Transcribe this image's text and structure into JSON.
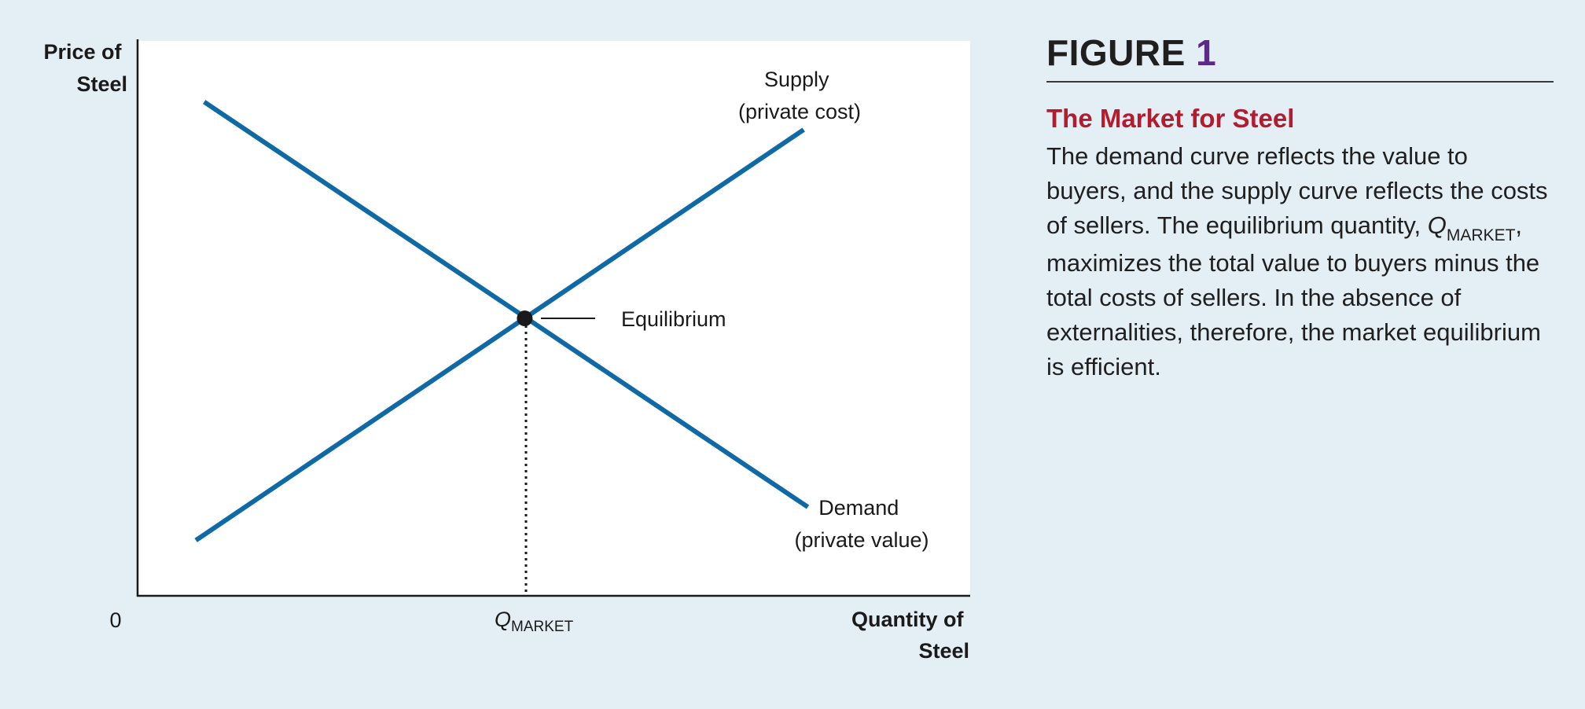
{
  "chart_data": {
    "type": "line",
    "title": "",
    "xlabel": "Quantity of Steel",
    "ylabel": "Price of Steel",
    "xlim": [
      0,
      100
    ],
    "ylim": [
      0,
      100
    ],
    "x_tick_labels": [
      "0",
      "Q",
      "MARKET"
    ],
    "series": [
      {
        "name": "Supply (private cost)",
        "x": [
          7,
          80
        ],
        "y": [
          10,
          84
        ],
        "color": "#0e69a6"
      },
      {
        "name": "Demand (private value)",
        "x": [
          8,
          80.5
        ],
        "y": [
          89,
          16
        ],
        "color": "#0e69a6"
      }
    ],
    "equilibrium": {
      "label": "Equilibrium",
      "x": 46.5,
      "y": 50
    },
    "annotations": {
      "supply": [
        "Supply",
        "(private cost)"
      ],
      "demand": [
        "Demand",
        "(private value)"
      ]
    },
    "grid": false
  },
  "panel": {
    "figure_word": "FIGURE",
    "figure_number": "1",
    "subtitle": "The Market for Steel",
    "body_1": "The demand curve reflects the value to buyers, and the supply curve reflects the costs of sellers. The equilibrium quantity,",
    "body_q": "Q",
    "body_q_sub": "MARKET",
    "body_2": ", maximizes the total value to buyers minus the total costs of sellers. In the absence of externalities, therefore, the market equilibrium is efficient."
  },
  "colors": {
    "background": "#e3eef5",
    "plot_area": "#ffffff",
    "curves": "#0e69a6",
    "figure_number": "#5b2a86",
    "subtitle": "#b31b2f"
  }
}
